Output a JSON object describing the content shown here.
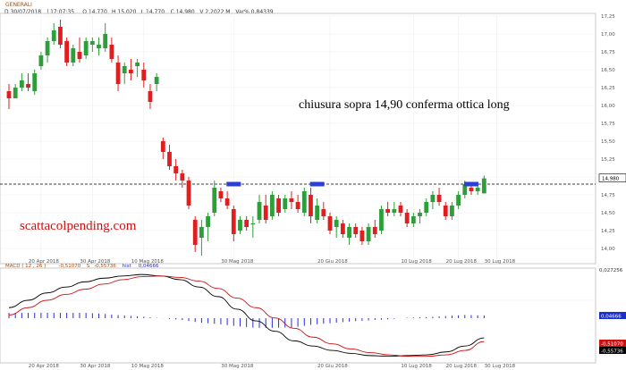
{
  "header": {
    "symbol": "GENERALI",
    "info_fields": [
      "D 30/07/2018",
      "| 17:07:35",
      "O 14,770",
      "H 15,020",
      "L 14,770",
      "C 14,980",
      "V 2,2022 M",
      "Var% 0,84339"
    ]
  },
  "price_axis": {
    "labels": [
      "17,25",
      "17,00",
      "16,75",
      "16,50",
      "16,25",
      "16,00",
      "15,75",
      "15,50",
      "15,25",
      "15,00",
      "14,75",
      "14,50",
      "14,25",
      "14,00"
    ],
    "current_price_label": "14,980"
  },
  "annotation": "chiusura sopra 14,90 conferma ottica long",
  "watermark": "scattacolpending.com",
  "macd": {
    "header_label": "MACD",
    "params": "( 12 , 26 )",
    "fields": [
      "-0,51070",
      "S",
      "-0,55736",
      "hist",
      "0,04666"
    ],
    "axis_top_label": "0,027256",
    "value_labels": [
      "0,04666",
      "-0,51070",
      "-0,55736"
    ]
  },
  "date_labels": [
    "20 Apr 2018",
    "30 Apr 2018",
    "10 Mag 2018",
    "30 Mag 2018",
    "20 Giu 2018",
    "10 Lug 2018",
    "20 Lug 2018",
    "30 Lug 2018"
  ],
  "colors": {
    "up_candle": "#2e9e3a",
    "down_candle": "#e01e1e",
    "macd_line": "#000000",
    "signal_line": "#d01010",
    "histogram": "#2b2bd6",
    "resistance_marker": "#2b3fd8",
    "annotation_text": "#000000",
    "watermark_text": "#d01010"
  },
  "chart_data": {
    "type": "candlestick",
    "title": "GENERALI",
    "ylim": [
      13.85,
      17.25
    ],
    "resistance_level": 14.9,
    "candles": [
      {
        "o": 16.2,
        "h": 16.3,
        "l": 15.95,
        "c": 16.1
      },
      {
        "o": 16.1,
        "h": 16.3,
        "l": 16.1,
        "c": 16.25
      },
      {
        "o": 16.25,
        "h": 16.45,
        "l": 16.2,
        "c": 16.35
      },
      {
        "o": 16.3,
        "h": 16.45,
        "l": 16.2,
        "c": 16.25
      },
      {
        "o": 16.2,
        "h": 16.5,
        "l": 16.15,
        "c": 16.45
      },
      {
        "o": 16.55,
        "h": 16.75,
        "l": 16.5,
        "c": 16.7
      },
      {
        "o": 16.7,
        "h": 16.95,
        "l": 16.6,
        "c": 16.9
      },
      {
        "o": 16.9,
        "h": 17.15,
        "l": 16.85,
        "c": 17.05
      },
      {
        "o": 17.1,
        "h": 17.2,
        "l": 16.8,
        "c": 16.85
      },
      {
        "o": 16.9,
        "h": 16.95,
        "l": 16.55,
        "c": 16.6
      },
      {
        "o": 16.6,
        "h": 16.85,
        "l": 16.55,
        "c": 16.8
      },
      {
        "o": 16.75,
        "h": 16.95,
        "l": 16.6,
        "c": 16.65
      },
      {
        "o": 16.7,
        "h": 16.95,
        "l": 16.65,
        "c": 16.9
      },
      {
        "o": 16.85,
        "h": 16.95,
        "l": 16.75,
        "c": 16.9
      },
      {
        "o": 16.8,
        "h": 16.95,
        "l": 16.7,
        "c": 16.85
      },
      {
        "o": 16.8,
        "h": 17.15,
        "l": 16.75,
        "c": 17.0
      },
      {
        "o": 16.85,
        "h": 16.95,
        "l": 16.6,
        "c": 16.65
      },
      {
        "o": 16.6,
        "h": 16.7,
        "l": 16.2,
        "c": 16.3
      },
      {
        "o": 16.45,
        "h": 16.6,
        "l": 16.3,
        "c": 16.55
      },
      {
        "o": 16.5,
        "h": 16.65,
        "l": 16.35,
        "c": 16.45
      },
      {
        "o": 16.55,
        "h": 16.65,
        "l": 16.4,
        "c": 16.6
      },
      {
        "o": 16.5,
        "h": 16.6,
        "l": 16.25,
        "c": 16.35
      },
      {
        "o": 16.2,
        "h": 16.3,
        "l": 15.95,
        "c": 16.05
      },
      {
        "o": 16.3,
        "h": 16.45,
        "l": 16.2,
        "c": 16.4
      },
      {
        "o": 15.5,
        "h": 15.55,
        "l": 15.25,
        "c": 15.35
      },
      {
        "o": 15.35,
        "h": 15.45,
        "l": 15.1,
        "c": 15.15
      },
      {
        "o": 15.15,
        "h": 15.25,
        "l": 14.95,
        "c": 15.05
      },
      {
        "o": 15.05,
        "h": 15.1,
        "l": 14.85,
        "c": 14.95
      },
      {
        "o": 14.95,
        "h": 15.0,
        "l": 14.55,
        "c": 14.6
      },
      {
        "o": 14.4,
        "h": 14.45,
        "l": 13.95,
        "c": 14.05
      },
      {
        "o": 14.15,
        "h": 14.4,
        "l": 13.9,
        "c": 14.3
      },
      {
        "o": 14.3,
        "h": 14.5,
        "l": 14.1,
        "c": 14.45
      },
      {
        "o": 14.5,
        "h": 14.95,
        "l": 14.45,
        "c": 14.85
      },
      {
        "o": 14.8,
        "h": 14.85,
        "l": 14.65,
        "c": 14.7
      },
      {
        "o": 14.7,
        "h": 14.8,
        "l": 14.55,
        "c": 14.6
      },
      {
        "o": 14.55,
        "h": 14.6,
        "l": 14.1,
        "c": 14.2
      },
      {
        "o": 14.25,
        "h": 14.45,
        "l": 14.2,
        "c": 14.4
      },
      {
        "o": 14.4,
        "h": 14.45,
        "l": 14.25,
        "c": 14.3
      },
      {
        "o": 14.35,
        "h": 14.45,
        "l": 14.15,
        "c": 14.35
      },
      {
        "o": 14.4,
        "h": 14.75,
        "l": 14.35,
        "c": 14.65
      },
      {
        "o": 14.6,
        "h": 14.75,
        "l": 14.35,
        "c": 14.4
      },
      {
        "o": 14.45,
        "h": 14.8,
        "l": 14.4,
        "c": 14.75
      },
      {
        "o": 14.7,
        "h": 14.75,
        "l": 14.45,
        "c": 14.5
      },
      {
        "o": 14.55,
        "h": 14.75,
        "l": 14.5,
        "c": 14.7
      },
      {
        "o": 14.7,
        "h": 14.8,
        "l": 14.55,
        "c": 14.65
      },
      {
        "o": 14.65,
        "h": 14.75,
        "l": 14.5,
        "c": 14.55
      },
      {
        "o": 14.5,
        "h": 14.85,
        "l": 14.45,
        "c": 14.8
      },
      {
        "o": 14.75,
        "h": 14.85,
        "l": 14.35,
        "c": 14.45
      },
      {
        "o": 14.4,
        "h": 14.7,
        "l": 14.35,
        "c": 14.6
      },
      {
        "o": 14.55,
        "h": 14.65,
        "l": 14.4,
        "c": 14.45
      },
      {
        "o": 14.45,
        "h": 14.5,
        "l": 14.2,
        "c": 14.25
      },
      {
        "o": 14.3,
        "h": 14.45,
        "l": 14.15,
        "c": 14.4
      },
      {
        "o": 14.35,
        "h": 14.4,
        "l": 14.15,
        "c": 14.2
      },
      {
        "o": 14.15,
        "h": 14.35,
        "l": 14.05,
        "c": 14.3
      },
      {
        "o": 14.3,
        "h": 14.35,
        "l": 14.15,
        "c": 14.2
      },
      {
        "o": 14.25,
        "h": 14.3,
        "l": 14.05,
        "c": 14.1
      },
      {
        "o": 14.1,
        "h": 14.35,
        "l": 14.05,
        "c": 14.3
      },
      {
        "o": 14.3,
        "h": 14.4,
        "l": 14.15,
        "c": 14.2
      },
      {
        "o": 14.25,
        "h": 14.6,
        "l": 14.2,
        "c": 14.55
      },
      {
        "o": 14.55,
        "h": 14.65,
        "l": 14.45,
        "c": 14.5
      },
      {
        "o": 14.5,
        "h": 14.65,
        "l": 14.45,
        "c": 14.55
      },
      {
        "o": 14.6,
        "h": 14.65,
        "l": 14.45,
        "c": 14.5
      },
      {
        "o": 14.5,
        "h": 14.55,
        "l": 14.3,
        "c": 14.35
      },
      {
        "o": 14.35,
        "h": 14.5,
        "l": 14.3,
        "c": 14.45
      },
      {
        "o": 14.45,
        "h": 14.55,
        "l": 14.35,
        "c": 14.5
      },
      {
        "o": 14.5,
        "h": 14.7,
        "l": 14.45,
        "c": 14.65
      },
      {
        "o": 14.65,
        "h": 14.8,
        "l": 14.55,
        "c": 14.75
      },
      {
        "o": 14.75,
        "h": 14.85,
        "l": 14.6,
        "c": 14.65
      },
      {
        "o": 14.6,
        "h": 14.65,
        "l": 14.4,
        "c": 14.45
      },
      {
        "o": 14.45,
        "h": 14.65,
        "l": 14.4,
        "c": 14.6
      },
      {
        "o": 14.6,
        "h": 14.8,
        "l": 14.55,
        "c": 14.75
      },
      {
        "o": 14.75,
        "h": 14.95,
        "l": 14.7,
        "c": 14.9
      },
      {
        "o": 14.85,
        "h": 14.9,
        "l": 14.75,
        "c": 14.8
      },
      {
        "o": 14.8,
        "h": 14.9,
        "l": 14.75,
        "c": 14.85
      },
      {
        "o": 14.77,
        "h": 15.02,
        "l": 14.77,
        "c": 14.98
      }
    ],
    "resistance_markers_at_candle": [
      35,
      48,
      72
    ],
    "date_ticks": [
      {
        "label": "20 Apr 2018",
        "i": 5
      },
      {
        "label": "30 Apr 2018",
        "i": 13
      },
      {
        "label": "10 Mag 2018",
        "i": 21
      },
      {
        "label": "30 Mag 2018",
        "i": 35
      },
      {
        "label": "20 Giu 2018",
        "i": 50
      },
      {
        "label": "10 Lug 2018",
        "i": 63
      },
      {
        "label": "20 Lug 2018",
        "i": 70
      },
      {
        "label": "30 Lug 2018",
        "i": 76
      }
    ],
    "macd_line": [
      -0.1,
      0.0,
      0.1,
      0.18,
      0.25,
      0.3,
      0.33,
      0.35,
      0.33,
      0.28,
      0.18,
      0.05,
      -0.12,
      -0.28,
      -0.42,
      -0.55,
      -0.62,
      -0.68,
      -0.72,
      -0.75,
      -0.76,
      -0.75,
      -0.74,
      -0.7,
      -0.62,
      -0.51
    ],
    "signal_line": [
      -0.2,
      -0.1,
      0.0,
      0.08,
      0.15,
      0.22,
      0.28,
      0.32,
      0.33,
      0.31,
      0.26,
      0.16,
      0.03,
      -0.1,
      -0.24,
      -0.38,
      -0.5,
      -0.59,
      -0.66,
      -0.71,
      -0.74,
      -0.76,
      -0.76,
      -0.74,
      -0.68,
      -0.56
    ],
    "macd_ylim": [
      -0.8,
      0.4
    ],
    "histogram_note": "0,04666"
  }
}
